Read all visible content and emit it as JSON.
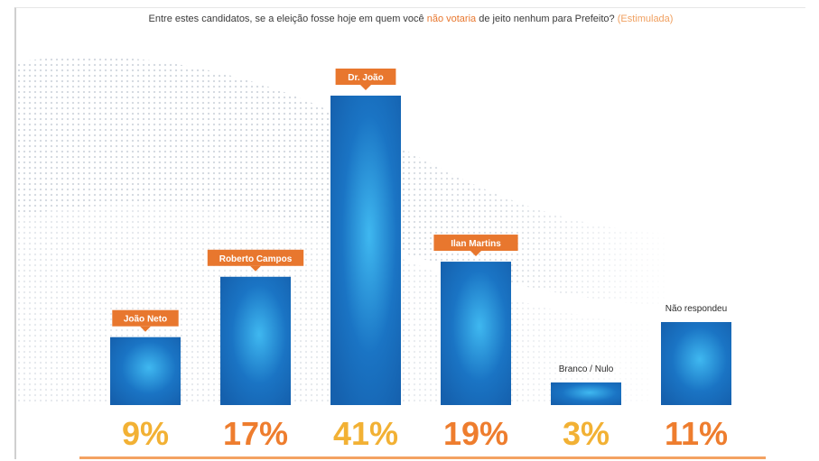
{
  "title": {
    "part1": "Entre estes candidatos, se a eleição fosse hoje em quem você",
    "highlight": "não votaria",
    "part2": "de jeito nenhum para Prefeito?",
    "tag": "(Estimulada)"
  },
  "colors": {
    "bar": "#1565b8",
    "bar_glow": "#3fb8f0",
    "label_box": "#e8772e",
    "pct_orange": "#ee7d2e",
    "pct_yellow": "#f2b134"
  },
  "chart_data": {
    "type": "bar",
    "title": "Entre estes candidatos, se a eleição fosse hoje em quem você não votaria de jeito nenhum para Prefeito? (Estimulada)",
    "categories": [
      "João Neto",
      "Roberto Campos",
      "Dr. João",
      "Ilan Martins",
      "Branco / Nulo",
      "Não respondeu"
    ],
    "values": [
      9,
      17,
      41,
      19,
      3,
      11
    ],
    "value_labels": [
      "9%",
      "17%",
      "41%",
      "19%",
      "3%",
      "11%"
    ],
    "label_style": [
      "box",
      "box",
      "box",
      "box",
      "plain",
      "plain"
    ],
    "pct_color": [
      "yellow",
      "orange",
      "yellow",
      "orange",
      "yellow",
      "orange"
    ],
    "unit": "%",
    "ylim": [
      0,
      45
    ],
    "grid": false,
    "legend": "none"
  }
}
